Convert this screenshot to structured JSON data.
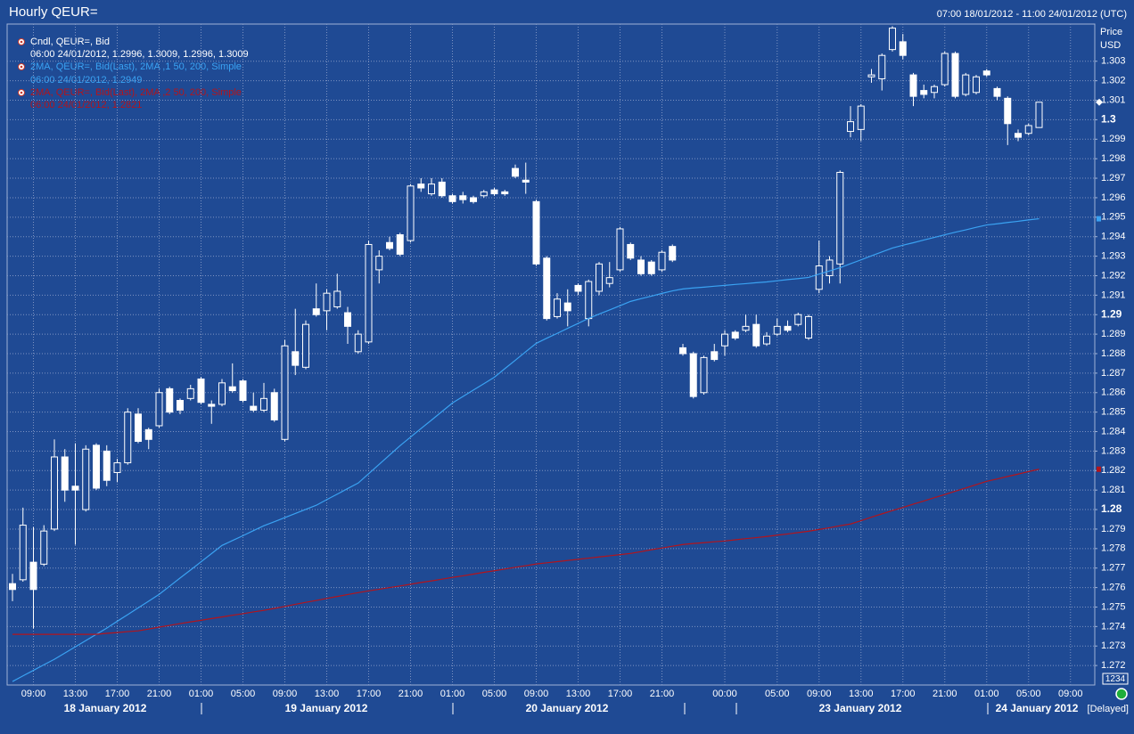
{
  "chart_data": {
    "type": "candlestick",
    "title": "Hourly QEUR=",
    "subtitle": "07:00 18/01/2012 - 11:00 24/01/2012 (UTC)",
    "y_label": "Price",
    "y_unit": "USD",
    "categories": [
      null,
      null,
      "09:00",
      null,
      null,
      null,
      "13:00",
      null,
      null,
      null,
      "17:00",
      null,
      null,
      null,
      "21:00",
      null,
      null,
      null,
      "01:00",
      null,
      null,
      null,
      "05:00",
      null,
      null,
      null,
      "09:00",
      null,
      null,
      null,
      "13:00",
      null,
      null,
      null,
      "17:00",
      null,
      null,
      null,
      "21:00",
      null,
      null,
      null,
      "01:00",
      null,
      null,
      null,
      "05:00",
      null,
      null,
      null,
      "09:00",
      null,
      null,
      null,
      "13:00",
      null,
      null,
      null,
      "17:00",
      null,
      null,
      null,
      "21:00",
      null,
      null,
      null,
      null,
      null,
      "00:00",
      null,
      null,
      null,
      null,
      "05:00",
      null,
      null,
      null,
      "09:00",
      null,
      null,
      null,
      "13:00",
      null,
      null,
      null,
      "17:00",
      null,
      null,
      null,
      "21:00",
      null,
      null,
      null,
      "01:00",
      null,
      null,
      null,
      "05:00",
      null,
      null,
      null,
      "09:00"
    ],
    "dates": [
      "18 January 2012",
      "19 January 2012",
      "20 January 2012",
      "23 January 2012",
      "24 January 2012"
    ],
    "candles": {
      "name": "Cndl, QEUR=, Bid",
      "detail": "06:00 24/01/2012, 1.2996, 1.3009, 1.2996, 1.3009",
      "color": "#ffffff",
      "open": [
        1.2762,
        1.2764,
        1.2773,
        1.2772,
        1.279,
        1.2827,
        1.2812,
        1.28,
        1.2833,
        1.283,
        1.2819,
        1.2824,
        1.2849,
        1.2841,
        1.2843,
        1.2862,
        1.2856,
        1.2857,
        1.2867,
        1.2854,
        1.2854,
        1.2863,
        1.2866,
        1.2853,
        1.2851,
        1.286,
        1.2836,
        1.2881,
        1.2873,
        1.2903,
        1.2902,
        1.2904,
        1.2901,
        1.2881,
        1.2886,
        1.2923,
        1.2937,
        1.2941,
        1.2938,
        1.2967,
        1.2962,
        1.2968,
        1.2961,
        1.2961,
        1.296,
        1.2961,
        1.2964,
        1.2963,
        1.2975,
        1.2969,
        1.2958,
        1.2929,
        1.2899,
        1.2906,
        1.2915,
        1.2898,
        1.2912,
        1.2916,
        1.2923,
        1.2936,
        1.2928,
        1.2927,
        1.2923,
        1.2935,
        1.2883,
        1.288,
        1.286,
        1.2881,
        1.2884,
        1.2891,
        1.2892,
        1.2895,
        1.2885,
        1.289,
        1.2894,
        1.2895,
        1.2888,
        1.2913,
        1.292,
        1.2926,
        1.2994,
        1.2995,
        1.3022,
        1.3021,
        1.3036,
        1.304,
        1.3023,
        1.3015,
        1.3014,
        1.3018,
        1.3034,
        1.3013,
        1.3014,
        1.3025,
        1.3016,
        1.3011,
        1.2993,
        1.2993,
        1.2996,
        null,
        null,
        null
      ],
      "high": [
        1.2767,
        1.2801,
        1.2791,
        1.2792,
        1.2836,
        1.2831,
        1.2834,
        1.2833,
        1.2834,
        1.2833,
        1.2826,
        1.2852,
        1.2852,
        1.2842,
        1.2862,
        1.2863,
        1.2857,
        1.2864,
        1.2868,
        1.2856,
        1.2867,
        1.2875,
        1.2867,
        1.286,
        1.2865,
        1.2862,
        1.2887,
        1.2903,
        1.2897,
        1.2916,
        1.2913,
        1.2921,
        1.2904,
        1.2892,
        1.2938,
        1.2933,
        1.294,
        1.2942,
        1.2967,
        1.297,
        1.297,
        1.297,
        1.2962,
        1.2963,
        1.2961,
        1.2964,
        1.2965,
        1.2964,
        1.2977,
        1.2978,
        1.2959,
        1.293,
        1.2911,
        1.2913,
        1.2916,
        1.2918,
        1.2927,
        1.2927,
        1.2945,
        1.2937,
        1.293,
        1.2928,
        1.2933,
        1.2936,
        1.2885,
        1.2881,
        1.2879,
        1.2885,
        1.2892,
        1.2892,
        1.29,
        1.29,
        1.2891,
        1.2898,
        1.2897,
        1.2901,
        1.29,
        1.2938,
        1.293,
        1.2974,
        1.3007,
        1.3008,
        1.3026,
        1.3034,
        1.3048,
        1.3044,
        1.3024,
        1.3018,
        1.3018,
        1.3035,
        1.3035,
        1.3024,
        1.3023,
        1.3026,
        1.3017,
        1.3012,
        1.2995,
        1.2998,
        1.3009,
        null,
        null,
        null
      ],
      "low": [
        1.2753,
        1.2763,
        1.2739,
        1.2771,
        1.2789,
        1.2804,
        1.2782,
        1.2799,
        1.281,
        1.2812,
        1.2814,
        1.2823,
        1.2834,
        1.2831,
        1.2842,
        1.2849,
        1.2849,
        1.2856,
        1.2854,
        1.2844,
        1.2853,
        1.286,
        1.2855,
        1.285,
        1.285,
        1.2845,
        1.2835,
        1.2869,
        1.2872,
        1.2899,
        1.2892,
        1.2903,
        1.2885,
        1.288,
        1.2885,
        1.2916,
        1.2933,
        1.293,
        1.2937,
        1.2963,
        1.2961,
        1.296,
        1.2957,
        1.2957,
        1.2957,
        1.296,
        1.2961,
        1.2961,
        1.297,
        1.2962,
        1.2925,
        1.2897,
        1.2898,
        1.2894,
        1.291,
        1.2894,
        1.291,
        1.2914,
        1.2922,
        1.2928,
        1.292,
        1.292,
        1.2922,
        1.2927,
        1.2879,
        1.2857,
        1.2859,
        1.2876,
        1.2879,
        1.2887,
        1.2891,
        1.2883,
        1.2884,
        1.2889,
        1.2891,
        1.2894,
        1.2887,
        1.2911,
        1.2916,
        1.2916,
        1.2991,
        1.2989,
        1.3019,
        1.3015,
        1.3035,
        1.3031,
        1.3007,
        1.3011,
        1.3011,
        1.3017,
        1.3011,
        1.3012,
        1.3013,
        1.3022,
        1.301,
        1.2987,
        1.2989,
        1.2992,
        1.2996,
        null,
        null,
        null
      ],
      "close": [
        1.2759,
        1.2792,
        1.2759,
        1.2789,
        1.2827,
        1.281,
        1.281,
        1.2831,
        1.2811,
        1.2815,
        1.2824,
        1.285,
        1.2835,
        1.2836,
        1.286,
        1.285,
        1.2851,
        1.2862,
        1.2855,
        1.2853,
        1.2865,
        1.2861,
        1.2856,
        1.2851,
        1.2857,
        1.2846,
        1.2884,
        1.2874,
        1.2895,
        1.29,
        1.2911,
        1.2912,
        1.2894,
        1.289,
        1.2936,
        1.293,
        1.2934,
        1.2931,
        1.2966,
        1.2965,
        1.2967,
        1.2961,
        1.2958,
        1.2959,
        1.2958,
        1.2963,
        1.2962,
        1.2962,
        1.2971,
        1.2968,
        1.2926,
        1.2898,
        1.2908,
        1.2902,
        1.2912,
        1.2917,
        1.2926,
        1.2919,
        1.2944,
        1.2929,
        1.2921,
        1.2921,
        1.2932,
        1.2928,
        1.288,
        1.2858,
        1.2878,
        1.2877,
        1.289,
        1.2888,
        1.2894,
        1.2884,
        1.2889,
        1.2894,
        1.2892,
        1.29,
        1.2899,
        1.2925,
        1.2928,
        1.2973,
        1.2999,
        1.3007,
        1.3023,
        1.3033,
        1.3047,
        1.3033,
        1.3012,
        1.3013,
        1.3017,
        1.3034,
        1.3012,
        1.3023,
        1.3022,
        1.3023,
        1.3012,
        1.2998,
        1.2991,
        1.2997,
        1.3009,
        null,
        null,
        null
      ]
    },
    "series": [
      {
        "name": "2MA, QEUR=, Bid(Last), 2MA ,1 50, 200, Simple",
        "detail": "06:00 24/01/2012, 1.2949",
        "color": "#3aa2f2",
        "values": [
          1.27118,
          1.27147,
          1.27175,
          1.27204,
          1.27232,
          1.27264,
          1.27296,
          1.27328,
          1.2736,
          1.27392,
          1.27427,
          1.27461,
          1.27496,
          1.2753,
          1.27565,
          1.27607,
          1.27649,
          1.2769,
          1.27732,
          1.27774,
          1.27816,
          1.27841,
          1.27866,
          1.27892,
          1.27917,
          1.27938,
          1.27959,
          1.2798,
          1.28001,
          1.28022,
          1.28051,
          1.28079,
          1.28108,
          1.28136,
          1.28184,
          1.28232,
          1.2828,
          1.28328,
          1.28372,
          1.28416,
          1.28459,
          1.28503,
          1.28547,
          1.2858,
          1.28613,
          1.28646,
          1.28679,
          1.28723,
          1.28766,
          1.2881,
          1.28853,
          1.28879,
          1.28904,
          1.2893,
          1.28955,
          1.28981,
          1.29003,
          1.29024,
          1.29046,
          1.29068,
          1.29082,
          1.29095,
          1.29109,
          1.29122,
          1.29132,
          1.29137,
          1.29141,
          1.29146,
          1.2915,
          1.29155,
          1.29159,
          1.29164,
          1.29168,
          1.29174,
          1.2918,
          1.29185,
          1.29191,
          1.29208,
          1.29224,
          1.29241,
          1.29261,
          1.29281,
          1.29302,
          1.29322,
          1.29342,
          1.29356,
          1.29369,
          1.29383,
          1.29396,
          1.2941,
          1.29423,
          1.29435,
          1.29448,
          1.2946,
          1.29466,
          1.29473,
          1.29479,
          1.29486,
          1.29492,
          null,
          null,
          null
        ]
      },
      {
        "name": "2MA, QEUR=, Bid(Last), 2MA ,2 50, 200, Simple",
        "detail": "06:00 24/01/2012, 1.2821",
        "color": "#b3141c",
        "values": [
          1.2736,
          1.2736,
          1.2736,
          1.2736,
          1.2736,
          1.2736,
          1.2736,
          1.2736,
          1.2736,
          1.27365,
          1.27369,
          1.27374,
          1.27378,
          1.27387,
          1.27397,
          1.27406,
          1.27415,
          1.27424,
          1.27432,
          1.27441,
          1.27449,
          1.27458,
          1.27466,
          1.27475,
          1.27483,
          1.27493,
          1.27503,
          1.27514,
          1.27524,
          1.27534,
          1.27544,
          1.27554,
          1.27564,
          1.27574,
          1.27583,
          1.27591,
          1.276,
          1.27608,
          1.27617,
          1.27626,
          1.27634,
          1.27643,
          1.27652,
          1.2766,
          1.27669,
          1.27678,
          1.27686,
          1.27695,
          1.27704,
          1.27712,
          1.27721,
          1.27727,
          1.27733,
          1.27739,
          1.27745,
          1.27751,
          1.27757,
          1.27763,
          1.27769,
          1.27775,
          1.27784,
          1.27794,
          1.27803,
          1.27812,
          1.27821,
          1.27826,
          1.2783,
          1.27835,
          1.27839,
          1.27845,
          1.27851,
          1.27856,
          1.27862,
          1.27869,
          1.27875,
          1.27882,
          1.27889,
          1.27898,
          1.27907,
          1.27917,
          1.27926,
          1.27943,
          1.27961,
          1.27978,
          1.27995,
          1.28011,
          1.28028,
          1.28044,
          1.28061,
          1.28077,
          1.28094,
          1.28111,
          1.28128,
          1.28145,
          1.28157,
          1.2817,
          1.28182,
          1.28195,
          1.28207,
          null,
          null,
          null
        ]
      }
    ],
    "ylim": [
      1.271,
      1.305
    ],
    "yticks": [
      1.272,
      1.273,
      1.274,
      1.275,
      1.276,
      1.277,
      1.278,
      1.279,
      1.28,
      1.281,
      1.282,
      1.283,
      1.284,
      1.285,
      1.286,
      1.287,
      1.288,
      1.289,
      1.29,
      1.291,
      1.292,
      1.293,
      1.294,
      1.295,
      1.296,
      1.297,
      1.298,
      1.299,
      1.3,
      1.301,
      1.302,
      1.303
    ],
    "grid": true,
    "badge": "1234",
    "status": "[Delayed]"
  }
}
